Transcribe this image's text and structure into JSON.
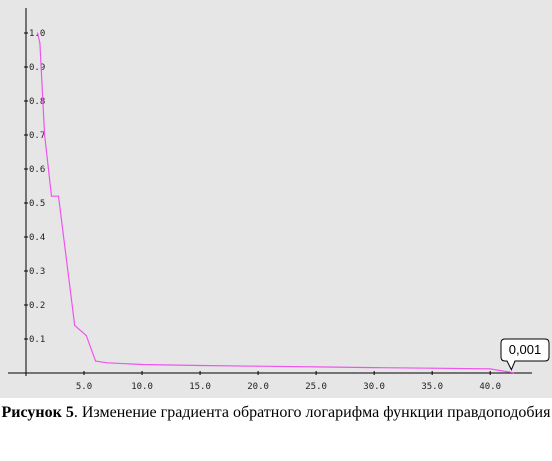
{
  "chart_data": {
    "type": "line",
    "title": "",
    "xlabel": "",
    "ylabel": "",
    "x_tick_labels": [
      "5.0",
      "10.0",
      "15.0",
      "20.0",
      "25.0",
      "30.0",
      "35.0",
      "40.0"
    ],
    "y_tick_labels": [
      "0.1",
      "0.2",
      "0.3",
      "0.4",
      "0.5",
      "0.6",
      "0.7",
      "0.8",
      "0.9",
      "1.0"
    ],
    "xlim": [
      0,
      43
    ],
    "ylim": [
      0,
      1.05
    ],
    "grid": false,
    "background_color": "#e6e6e6",
    "series_color": "#ee55ee",
    "series": [
      {
        "x": [
          1,
          1.2,
          1.6,
          2.2,
          2.8,
          4.2,
          5.2,
          6.0,
          7.0,
          10.0,
          15.0,
          20.0,
          25.0,
          30.0,
          35.0,
          40.0,
          42.0
        ],
        "values": [
          1.0,
          0.97,
          0.7,
          0.52,
          0.52,
          0.14,
          0.11,
          0.035,
          0.03,
          0.025,
          0.022,
          0.02,
          0.018,
          0.016,
          0.014,
          0.012,
          0.001
        ]
      }
    ],
    "annotation": {
      "text": "0,001",
      "x": 42.0,
      "y": 0.001
    }
  },
  "caption": {
    "label": "Рисунок 5",
    "text": ". Изменение градиента обратного логарифма функции правдоподобия"
  }
}
